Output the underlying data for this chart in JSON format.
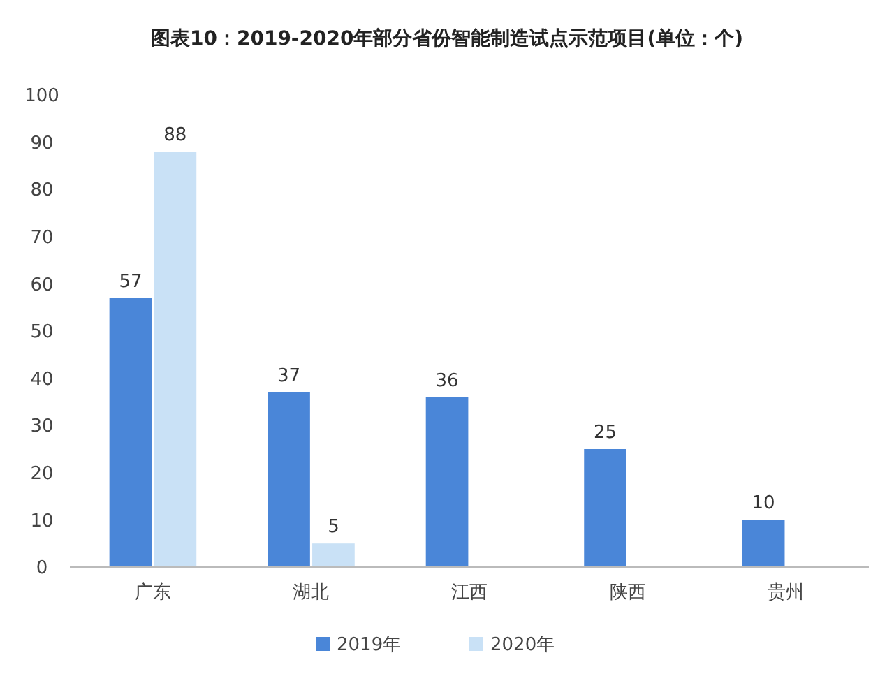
{
  "chart_data": {
    "type": "bar",
    "title": "图表10：2019-2020年部分省份智能制造试点示范项目(单位：个)",
    "categories": [
      "广东",
      "湖北",
      "江西",
      "陕西",
      "贵州"
    ],
    "series": [
      {
        "name": "2019年",
        "color": "#4a86d8",
        "values": [
          57,
          37,
          36,
          25,
          10
        ]
      },
      {
        "name": "2020年",
        "color": "#c9e1f6",
        "values": [
          88,
          5,
          null,
          null,
          null
        ]
      }
    ],
    "ylim": [
      0,
      100
    ],
    "yticks": [
      0,
      10,
      20,
      30,
      40,
      50,
      60,
      70,
      80,
      90,
      100
    ],
    "grid": false,
    "legend": "bottom",
    "data_labels": true
  }
}
